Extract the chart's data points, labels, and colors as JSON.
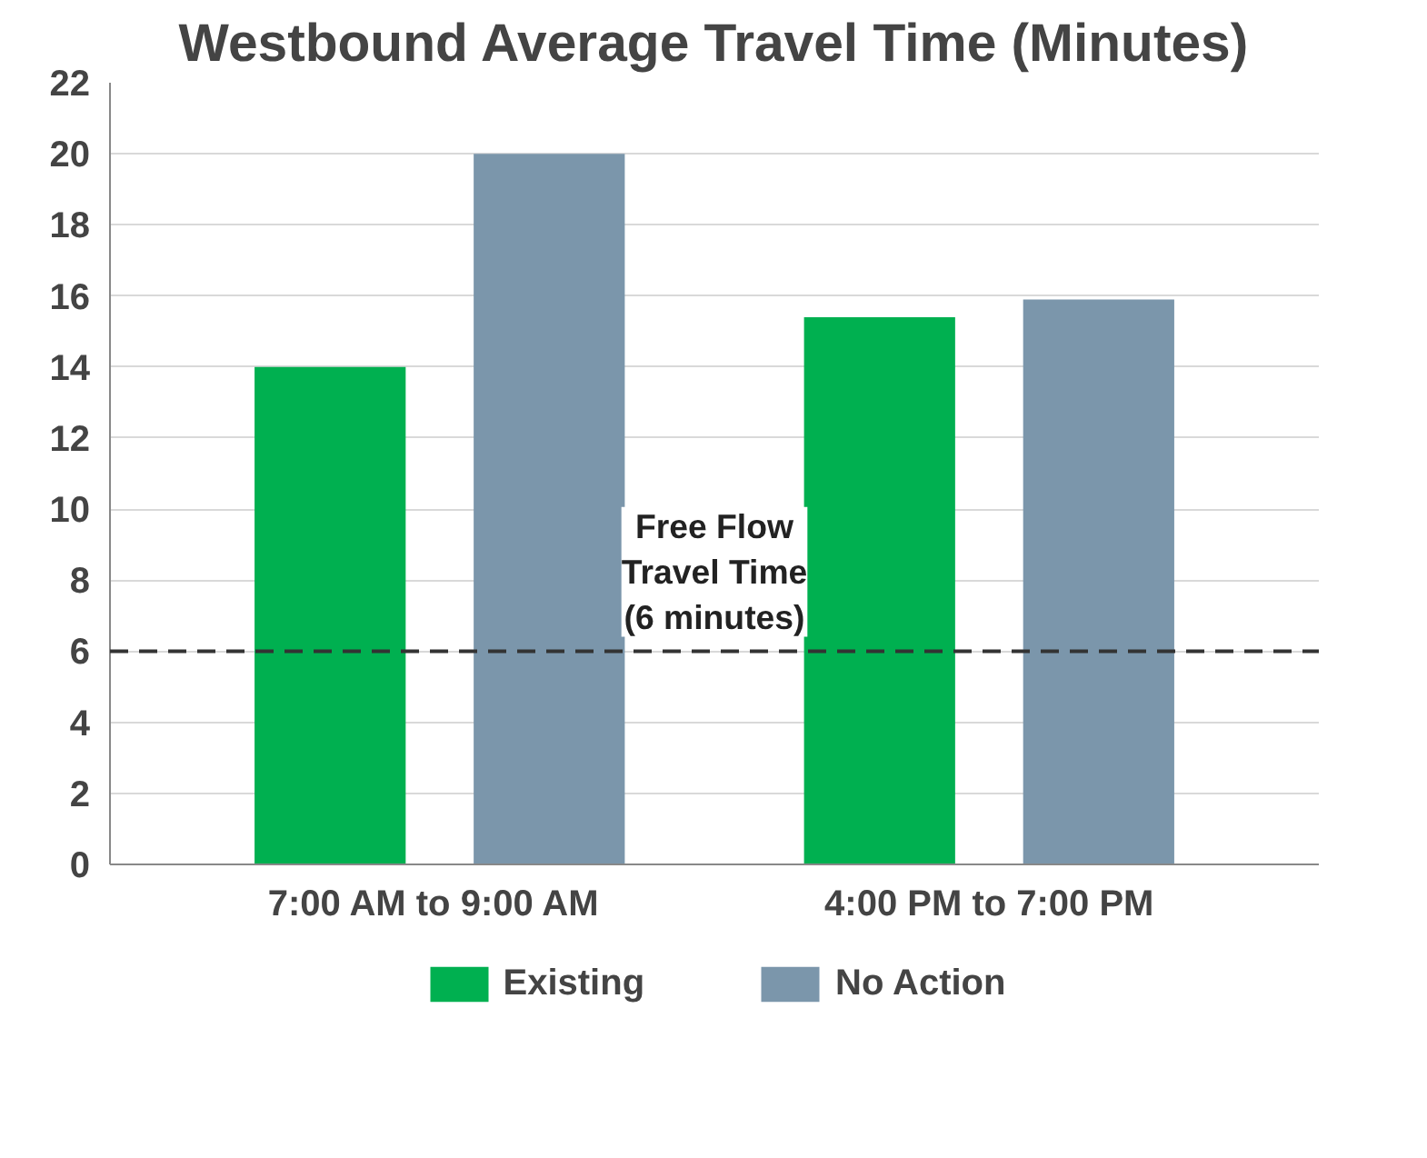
{
  "chart_data": {
    "type": "bar",
    "title": "Westbound Average Travel Time (Minutes)",
    "categories": [
      "7:00 AM  to 9:00 AM",
      "4:00 PM to 7:00 PM"
    ],
    "series": [
      {
        "name": "Existing",
        "color": "#00b050",
        "values": [
          14,
          15.4
        ]
      },
      {
        "name": "No Action",
        "color": "#7b96ab",
        "values": [
          20,
          15.9
        ]
      }
    ],
    "ylim": [
      0,
      22
    ],
    "yticks": [
      0,
      2,
      4,
      6,
      8,
      10,
      12,
      14,
      16,
      18,
      20,
      22
    ],
    "grid": "y",
    "legend": "bottom",
    "ref_lines": [
      {
        "axis": "y",
        "value": 6,
        "label": "Free Flow\nTravel Time\n(6 minutes)",
        "color": "#333333",
        "line_style": "dashed"
      }
    ]
  }
}
